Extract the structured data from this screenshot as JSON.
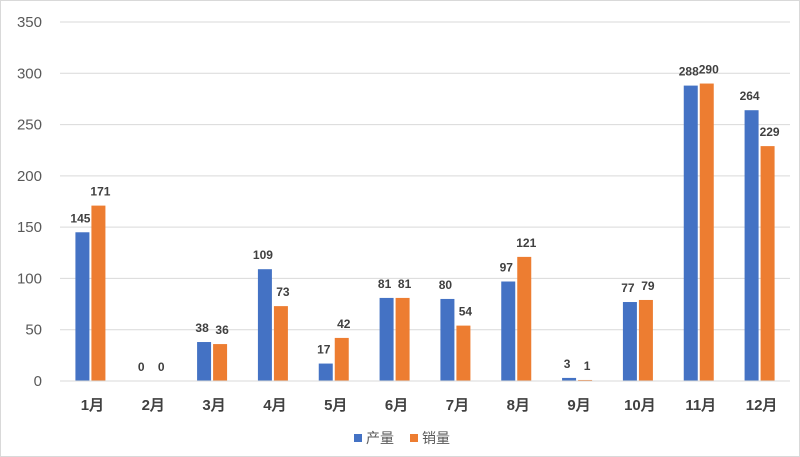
{
  "chart_data": {
    "type": "bar",
    "title": "",
    "xlabel": "",
    "ylabel": "",
    "categories": [
      "1月",
      "2月",
      "3月",
      "4月",
      "5月",
      "6月",
      "7月",
      "8月",
      "9月",
      "10月",
      "11月",
      "12月"
    ],
    "series": [
      {
        "name": "产量",
        "color": "#4472c4",
        "values": [
          145,
          0,
          38,
          109,
          17,
          81,
          80,
          97,
          3,
          77,
          288,
          264
        ]
      },
      {
        "name": "销量",
        "color": "#ed7d31",
        "values": [
          171,
          0,
          36,
          73,
          42,
          81,
          54,
          121,
          1,
          79,
          290,
          229
        ]
      }
    ],
    "ylim": [
      0,
      350
    ],
    "yticks": [
      0,
      50,
      100,
      150,
      200,
      250,
      300,
      350
    ],
    "grid": true,
    "legend_position": "bottom",
    "data_labels": true
  }
}
